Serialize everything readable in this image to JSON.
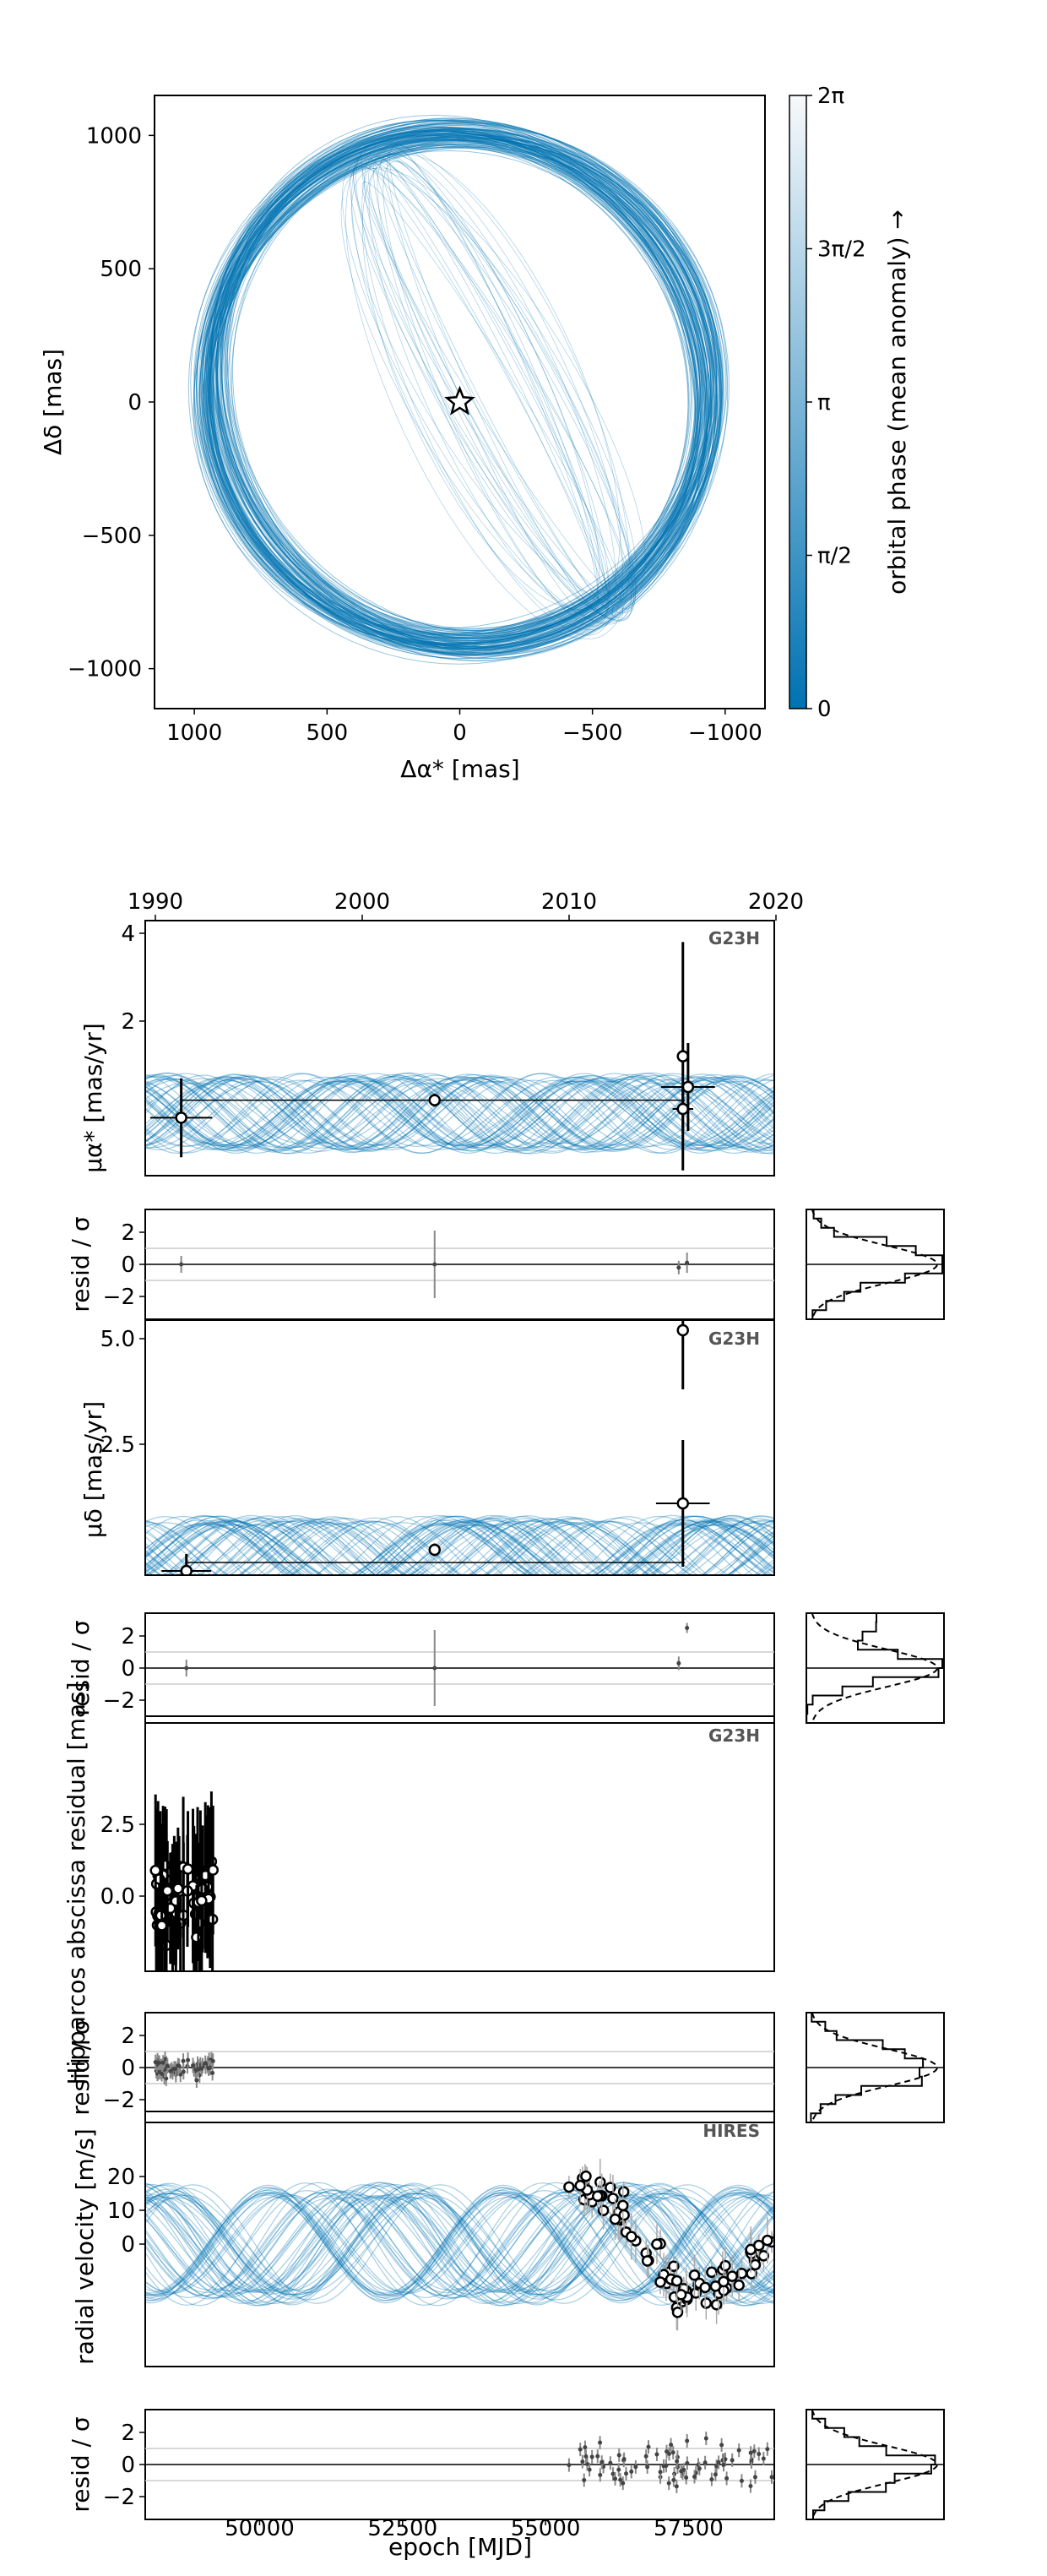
{
  "colors": {
    "orbit": "#0072B2",
    "data_marker": "#000000",
    "hist_line": "#000000"
  },
  "chart_data": [
    {
      "type": "line",
      "name": "sky_orbit",
      "xlabel": "Δα* [mas]",
      "ylabel": "Δδ [mas]",
      "xlim": [
        1150,
        -1150
      ],
      "ylim": [
        -1150,
        1150
      ],
      "xticks": [
        "1000",
        "500",
        "0",
        "−500",
        "−1000"
      ],
      "yticks": [
        "1000",
        "500",
        "0",
        "−500",
        "−1000"
      ],
      "star_marker": {
        "x": 0,
        "y": 0
      },
      "orbit_ellipse": {
        "center_x": 0,
        "center_y": 50,
        "semi_x": 1000,
        "semi_y": 1020
      },
      "colorbar": {
        "label": "orbital phase (mean anomaly) →",
        "ticks": [
          "0",
          "π/2",
          "π",
          "3π/2",
          "2π"
        ]
      }
    },
    {
      "type": "scatter",
      "name": "pmra",
      "top_axis_ticks": [
        "1990",
        "2000",
        "2010",
        "2020"
      ],
      "ylabel": "μα* [mas/yr]",
      "yticks": [
        "2",
        "4"
      ],
      "instrument": "G23H",
      "period_years": 11.5,
      "model_band": {
        "center": -0.1,
        "amplitude": 0.8
      },
      "points": [
        {
          "year": 1991.25,
          "y": -0.2,
          "yerr": 0.9,
          "xerr": 1.5
        },
        {
          "year": 2003.5,
          "y": 0.2,
          "yerr": 0.15,
          "xerr": 0
        },
        {
          "year": 2015.5,
          "y": 1.2,
          "yerr": 2.6,
          "xerr": 0
        },
        {
          "year": 2015.75,
          "y": 0.5,
          "yerr": 1.0,
          "xerr": 1.3
        },
        {
          "year": 2015.5,
          "y": 0.0,
          "yerr": 0.5,
          "xerr": 0.5
        }
      ],
      "residual_panel": {
        "ylabel": "resid / σ",
        "yticks": [
          "2",
          "0",
          "−2"
        ]
      }
    },
    {
      "type": "scatter",
      "name": "pmdec",
      "ylabel": "μδ [mas/yr]",
      "yticks": [
        "2.5",
        "5.0"
      ],
      "instrument": "G23H",
      "period_years": 11.5,
      "model_band": {
        "center": 0.0,
        "amplitude": 0.8
      },
      "points": [
        {
          "year": 1991.5,
          "y": -0.5,
          "yerr": 0.4,
          "xerr": 1.2
        },
        {
          "year": 2003.5,
          "y": 0.0,
          "yerr": 0.15,
          "xerr": 0
        },
        {
          "year": 2015.5,
          "y": 5.2,
          "yerr": 1.4,
          "xerr": 0
        },
        {
          "year": 2015.5,
          "y": 1.1,
          "yerr": 1.5,
          "xerr": 1.3
        }
      ],
      "residual_panel": {
        "ylabel": "resid / σ",
        "yticks": [
          "2",
          "0",
          "−2"
        ]
      }
    },
    {
      "type": "scatter",
      "name": "hipparcos_iad",
      "ylabel": "Hipparcos abscissa residual [mas]",
      "yticks": [
        "0.0",
        "2.5"
      ],
      "instrument": "G23H",
      "xrange_years": [
        1990.0,
        1992.8
      ],
      "n_points": 60,
      "residual_panel": {
        "ylabel": "resid / σ",
        "yticks": [
          "2",
          "0",
          "−2"
        ]
      }
    },
    {
      "type": "scatter",
      "name": "radial_velocity",
      "ylabel": "radial velocity [m/s]",
      "yticks": [
        "0",
        "10",
        "20"
      ],
      "instrument": "HIRES",
      "xlabel": "epoch [MJD]",
      "xticks": [
        "50000",
        "52500",
        "55000",
        "57500"
      ],
      "xlim_mjd": [
        48000,
        59000
      ],
      "period_days": 4200,
      "model_band": {
        "center": 0,
        "amplitude": 16
      },
      "data_mjd_range": [
        55400,
        59000
      ],
      "n_points": 80,
      "residual_panel": {
        "ylabel": "resid / σ",
        "yticks": [
          "2",
          "0",
          "−2"
        ]
      }
    }
  ]
}
